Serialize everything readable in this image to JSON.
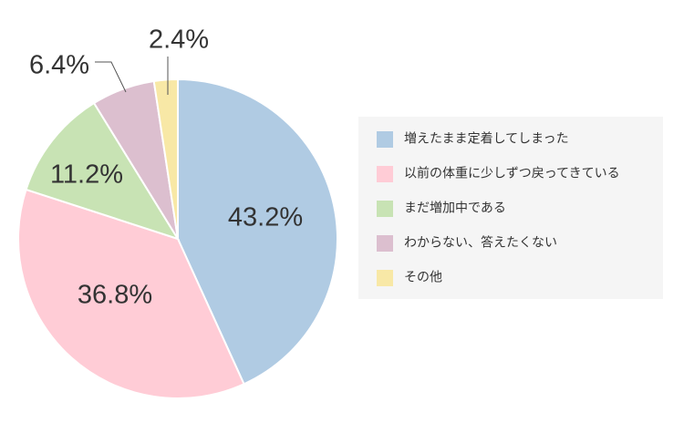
{
  "chart_data": {
    "type": "pie",
    "categories": [
      "増えたまま定着してしまった",
      "以前の体重に少しずつ戻ってきている",
      "まだ増加中である",
      "わからない、答えたくない",
      "その他"
    ],
    "values": [
      43.2,
      36.8,
      11.2,
      6.4,
      2.4
    ],
    "value_labels": [
      "43.2%",
      "36.8%",
      "11.2%",
      "6.4%",
      "2.4%"
    ],
    "colors": [
      "#b0cbe3",
      "#ffccd6",
      "#c8e3b4",
      "#dcbfcf",
      "#f8e8a6"
    ],
    "legend": "right"
  }
}
